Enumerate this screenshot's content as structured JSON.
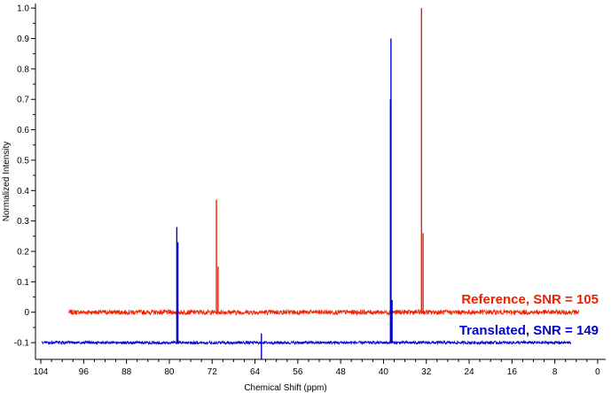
{
  "chart_data": {
    "type": "line",
    "title": "",
    "xlabel": "Chemical Shift (ppm)",
    "ylabel": "Normalized Intensity",
    "xlim": [
      105,
      -1.5
    ],
    "ylim": [
      -0.155,
      1.015
    ],
    "x_reversed": true,
    "x_ticks": [
      104,
      96,
      88,
      80,
      72,
      64,
      56,
      48,
      40,
      32,
      24,
      16,
      8,
      0
    ],
    "x_tick_labels": [
      "104",
      "96",
      "88",
      "80",
      "72",
      "64",
      "56",
      "48",
      "40",
      "32",
      "24",
      "16",
      "8",
      "0"
    ],
    "y_ticks": [
      -0.1,
      0,
      0.1,
      0.2,
      0.3,
      0.4,
      0.5,
      0.6,
      0.7,
      0.8,
      0.9,
      1.0
    ],
    "y_tick_labels": [
      "-0.1",
      "0",
      "0.1",
      "0.2",
      "0.3",
      "0.4",
      "0.5",
      "0.6",
      "0.7",
      "0.8",
      "0.9",
      "1.0"
    ],
    "grid": false,
    "legend": "inline text at right end of each trace",
    "series": [
      {
        "name": "Reference, SNR = 105",
        "color": "#ee2200",
        "baseline": 0.0,
        "x_range": [
          98.8,
          3.5
        ],
        "noise_amplitude": 0.008,
        "peaks": [
          {
            "x": 71.2,
            "height": 0.37
          },
          {
            "x": 70.9,
            "height": 0.15
          },
          {
            "x": 32.9,
            "height": 1.0
          },
          {
            "x": 32.6,
            "height": 0.26
          }
        ]
      },
      {
        "name": "Translated, SNR = 149",
        "color": "#0000cc",
        "baseline": -0.1,
        "x_range": [
          103.8,
          5.0
        ],
        "noise_amplitude": 0.005,
        "peaks": [
          {
            "x": 78.6,
            "height": 0.38
          },
          {
            "x": 78.4,
            "height": 0.33
          },
          {
            "x": 38.6,
            "height": 1.0
          },
          {
            "x": 38.7,
            "height": 0.8
          },
          {
            "x": 38.4,
            "height": 0.14
          },
          {
            "x": 62.8,
            "height": 0.03
          },
          {
            "x": 62.8,
            "height": -0.055
          }
        ]
      }
    ]
  }
}
